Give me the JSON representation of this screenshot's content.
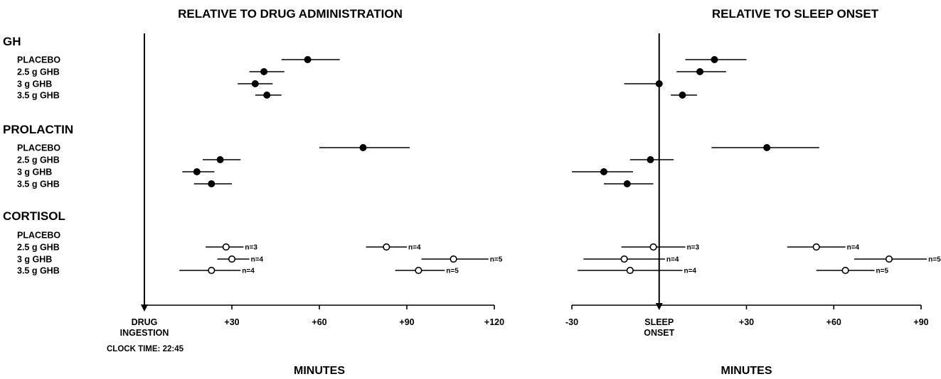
{
  "chart_data": {
    "type": "scatter",
    "style": "dot-and-whisker (mean with error bars); filled circles for GH and PROLACTIN, open circles with n labels for CORTISOL",
    "sections": [
      {
        "name": "GH",
        "rows": [
          "PLACEBO",
          "2.5 g GHB",
          "3 g GHB",
          "3.5 g GHB"
        ]
      },
      {
        "name": "PROLACTIN",
        "rows": [
          "PLACEBO",
          "2.5 g GHB",
          "3 g GHB",
          "3.5 g GHB"
        ]
      },
      {
        "name": "CORTISOL",
        "rows": [
          "PLACEBO",
          "2.5 g GHB",
          "3 g GHB",
          "3.5 g GHB"
        ]
      }
    ],
    "panels": [
      {
        "title": "RELATIVE TO DRUG ADMINISTRATION",
        "xlabel": "MINUTES",
        "xlim": [
          0,
          120
        ],
        "xticks": [
          0,
          30,
          60,
          90,
          120
        ],
        "xtick_labels": [
          [
            "DRUG",
            "INGESTION"
          ],
          [
            "+30"
          ],
          [
            "+60"
          ],
          [
            "+90"
          ],
          [
            "+120"
          ]
        ],
        "note": "CLOCK TIME: 22:45",
        "series": [
          {
            "section": "GH",
            "row": "PLACEBO",
            "x": 56,
            "lo": 47,
            "hi": 67,
            "open": false
          },
          {
            "section": "GH",
            "row": "2.5 g GHB",
            "x": 41,
            "lo": 36,
            "hi": 48,
            "open": false
          },
          {
            "section": "GH",
            "row": "3 g GHB",
            "x": 38,
            "lo": 32,
            "hi": 44,
            "open": false
          },
          {
            "section": "GH",
            "row": "3.5 g GHB",
            "x": 42,
            "lo": 38,
            "hi": 47,
            "open": false
          },
          {
            "section": "PROLACTIN",
            "row": "PLACEBO",
            "x": 75,
            "lo": 60,
            "hi": 91,
            "open": false
          },
          {
            "section": "PROLACTIN",
            "row": "2.5 g GHB",
            "x": 26,
            "lo": 20,
            "hi": 33,
            "open": false
          },
          {
            "section": "PROLACTIN",
            "row": "3 g GHB",
            "x": 18,
            "lo": 13,
            "hi": 24,
            "open": false
          },
          {
            "section": "PROLACTIN",
            "row": "3.5 g GHB",
            "x": 23,
            "lo": 17,
            "hi": 30,
            "open": false
          },
          {
            "section": "CORTISOL",
            "row": "2.5 g GHB",
            "x": 28,
            "lo": 21,
            "hi": 34,
            "open": true,
            "n": "n=3"
          },
          {
            "section": "CORTISOL",
            "row": "2.5 g GHB",
            "x": 83,
            "lo": 76,
            "hi": 90,
            "open": true,
            "n": "n=4"
          },
          {
            "section": "CORTISOL",
            "row": "3 g GHB",
            "x": 30,
            "lo": 25,
            "hi": 36,
            "open": true,
            "n": "n=4"
          },
          {
            "section": "CORTISOL",
            "row": "3 g GHB",
            "x": 106,
            "lo": 95,
            "hi": 118,
            "open": true,
            "n": "n=5"
          },
          {
            "section": "CORTISOL",
            "row": "3.5 g GHB",
            "x": 23,
            "lo": 12,
            "hi": 33,
            "open": true,
            "n": "n=4"
          },
          {
            "section": "CORTISOL",
            "row": "3.5 g GHB",
            "x": 94,
            "lo": 86,
            "hi": 103,
            "open": true,
            "n": "n=5"
          }
        ]
      },
      {
        "title": "RELATIVE TO SLEEP ONSET",
        "xlabel": "MINUTES",
        "xlim": [
          -30,
          90
        ],
        "xticks": [
          -30,
          0,
          30,
          60,
          90
        ],
        "xtick_labels": [
          [
            "-30"
          ],
          [
            "SLEEP",
            "ONSET"
          ],
          [
            "+30"
          ],
          [
            "+60"
          ],
          [
            "+90"
          ]
        ],
        "series": [
          {
            "section": "GH",
            "row": "PLACEBO",
            "x": 19,
            "lo": 9,
            "hi": 30,
            "open": false
          },
          {
            "section": "GH",
            "row": "2.5 g GHB",
            "x": 14,
            "lo": 6,
            "hi": 23,
            "open": false
          },
          {
            "section": "GH",
            "row": "3 g GHB",
            "x": 0,
            "lo": -12,
            "hi": 0,
            "open": false
          },
          {
            "section": "GH",
            "row": "3.5 g GHB",
            "x": 8,
            "lo": 4,
            "hi": 13,
            "open": false
          },
          {
            "section": "PROLACTIN",
            "row": "PLACEBO",
            "x": 37,
            "lo": 18,
            "hi": 55,
            "open": false
          },
          {
            "section": "PROLACTIN",
            "row": "2.5 g GHB",
            "x": -3,
            "lo": -10,
            "hi": 5,
            "open": false
          },
          {
            "section": "PROLACTIN",
            "row": "3 g GHB",
            "x": -19,
            "lo": -30,
            "hi": -9,
            "open": false
          },
          {
            "section": "PROLACTIN",
            "row": "3.5 g GHB",
            "x": -11,
            "lo": -19,
            "hi": -2,
            "open": false
          },
          {
            "section": "CORTISOL",
            "row": "2.5 g GHB",
            "x": -2,
            "lo": -13,
            "hi": 9,
            "open": true,
            "n": "n=3"
          },
          {
            "section": "CORTISOL",
            "row": "2.5 g GHB",
            "x": 54,
            "lo": 44,
            "hi": 64,
            "open": true,
            "n": "n=4"
          },
          {
            "section": "CORTISOL",
            "row": "3 g GHB",
            "x": -12,
            "lo": -26,
            "hi": 2,
            "open": true,
            "n": "n=4"
          },
          {
            "section": "CORTISOL",
            "row": "3 g GHB",
            "x": 79,
            "lo": 67,
            "hi": 92,
            "open": true,
            "n": "n=5"
          },
          {
            "section": "CORTISOL",
            "row": "3.5 g GHB",
            "x": -10,
            "lo": -28,
            "hi": 8,
            "open": true,
            "n": "n=4"
          },
          {
            "section": "CORTISOL",
            "row": "3.5 g GHB",
            "x": 64,
            "lo": 54,
            "hi": 74,
            "open": true,
            "n": "n=5"
          }
        ]
      }
    ]
  }
}
